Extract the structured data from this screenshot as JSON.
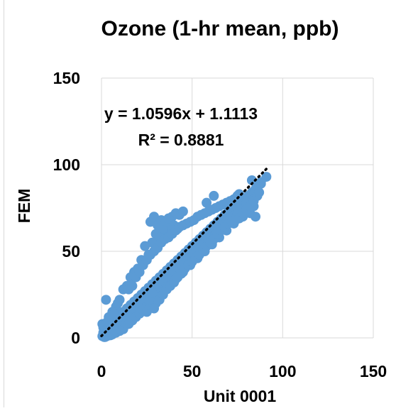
{
  "chart_data": {
    "type": "scatter",
    "title": "Ozone (1-hr mean, ppb)",
    "xlabel": "Unit 0001",
    "ylabel": "FEM",
    "xlim": [
      0,
      150
    ],
    "ylim": [
      0,
      150
    ],
    "xticks": [
      "0",
      "50",
      "100",
      "150"
    ],
    "yticks": [
      "0",
      "50",
      "100",
      "150"
    ],
    "grid": true,
    "legend": "none",
    "marker_color": "#5B9BD5",
    "trendline": {
      "style": "dotted",
      "color": "#000000",
      "slope": 1.0596,
      "intercept": 1.1113,
      "x_range": [
        0,
        91
      ]
    },
    "annotations": {
      "equation": "y = 1.0596x + 1.1113",
      "r_squared": "R² = 0.8881"
    },
    "series": [
      {
        "points": [
          [
            0.5,
            1
          ],
          [
            1,
            3
          ],
          [
            1.5,
            0.5
          ],
          [
            2,
            5
          ],
          [
            2.5,
            7
          ],
          [
            3,
            2
          ],
          [
            4,
            4
          ],
          [
            4.5,
            8
          ],
          [
            5,
            1.5
          ],
          [
            6,
            6
          ],
          [
            7,
            3
          ],
          [
            7.5,
            9
          ],
          [
            8,
            5
          ],
          [
            9,
            11
          ],
          [
            10,
            7
          ],
          [
            10.5,
            13
          ],
          [
            11,
            9
          ],
          [
            12,
            15
          ],
          [
            13,
            11
          ],
          [
            13.5,
            8
          ],
          [
            14,
            17
          ],
          [
            15,
            13
          ],
          [
            16,
            19
          ],
          [
            16.5,
            12
          ],
          [
            17,
            15
          ],
          [
            18,
            21
          ],
          [
            19,
            16
          ],
          [
            20,
            23
          ],
          [
            20.5,
            18
          ],
          [
            21,
            14
          ],
          [
            22,
            25
          ],
          [
            23,
            20
          ],
          [
            24,
            27
          ],
          [
            24.5,
            22
          ],
          [
            25,
            18
          ],
          [
            26,
            29
          ],
          [
            27,
            24
          ],
          [
            28,
            31
          ],
          [
            28.5,
            26
          ],
          [
            29,
            22
          ],
          [
            30,
            33
          ],
          [
            31,
            28
          ],
          [
            32,
            35
          ],
          [
            32.5,
            30
          ],
          [
            33,
            26
          ],
          [
            34,
            37
          ],
          [
            35,
            32
          ],
          [
            36,
            39
          ],
          [
            36.5,
            34
          ],
          [
            37,
            30
          ],
          [
            38,
            41
          ],
          [
            39,
            36
          ],
          [
            40,
            43
          ],
          [
            40.5,
            38
          ],
          [
            41,
            34
          ],
          [
            42,
            45
          ],
          [
            43,
            40
          ],
          [
            44,
            47
          ],
          [
            44.5,
            42
          ],
          [
            45,
            38
          ],
          [
            46,
            49
          ],
          [
            47,
            44
          ],
          [
            48,
            51
          ],
          [
            48.5,
            46
          ],
          [
            49,
            42
          ],
          [
            50,
            53
          ],
          [
            51,
            48
          ],
          [
            52,
            55
          ],
          [
            52.5,
            50
          ],
          [
            53,
            46
          ],
          [
            54,
            57
          ],
          [
            55,
            52
          ],
          [
            56,
            59
          ],
          [
            56.5,
            54
          ],
          [
            57,
            50
          ],
          [
            58,
            61
          ],
          [
            59,
            56
          ],
          [
            60,
            63
          ],
          [
            60.5,
            58
          ],
          [
            61,
            54
          ],
          [
            62,
            65
          ],
          [
            63,
            60
          ],
          [
            64,
            67
          ],
          [
            64.5,
            62
          ],
          [
            65,
            58
          ],
          [
            66,
            69
          ],
          [
            67,
            64
          ],
          [
            68,
            71
          ],
          [
            68.5,
            66
          ],
          [
            69,
            62
          ],
          [
            70,
            73
          ],
          [
            71,
            68
          ],
          [
            72,
            75
          ],
          [
            72.5,
            70
          ],
          [
            73,
            66
          ],
          [
            74,
            77
          ],
          [
            75,
            72
          ],
          [
            76,
            78
          ],
          [
            77,
            74
          ],
          [
            78,
            70
          ],
          [
            79,
            80
          ],
          [
            80,
            76
          ],
          [
            81,
            82
          ],
          [
            82,
            78
          ],
          [
            83,
            84
          ],
          [
            84,
            80
          ],
          [
            85,
            86
          ],
          [
            86,
            88
          ],
          [
            88,
            90
          ],
          [
            91,
            93
          ],
          [
            83,
            91
          ],
          [
            88,
            89
          ],
          [
            76,
            83
          ],
          [
            80,
            78
          ],
          [
            84,
            76
          ],
          [
            82,
            72
          ],
          [
            85,
            70
          ],
          [
            27,
            67
          ],
          [
            29,
            70
          ],
          [
            31,
            65
          ],
          [
            33,
            68
          ],
          [
            35,
            66
          ],
          [
            37,
            69
          ],
          [
            39,
            70
          ],
          [
            41,
            72
          ],
          [
            43,
            71
          ],
          [
            45,
            73
          ],
          [
            40,
            65
          ],
          [
            42,
            63
          ],
          [
            38,
            62
          ],
          [
            34,
            62
          ],
          [
            36,
            58
          ],
          [
            30,
            60
          ],
          [
            32,
            58
          ],
          [
            28,
            55
          ],
          [
            24,
            53
          ],
          [
            26,
            48
          ],
          [
            22,
            45
          ],
          [
            20,
            40
          ],
          [
            18,
            38
          ],
          [
            16,
            35
          ],
          [
            14,
            30
          ],
          [
            12,
            28
          ],
          [
            10,
            22
          ],
          [
            8,
            18
          ],
          [
            6,
            15
          ],
          [
            4,
            12
          ],
          [
            2.5,
            22
          ],
          [
            5,
            10
          ],
          [
            7,
            14
          ],
          [
            9,
            20
          ],
          [
            15,
            28
          ],
          [
            17,
            30
          ],
          [
            19,
            35
          ],
          [
            21,
            38
          ],
          [
            23,
            42
          ],
          [
            25,
            45
          ],
          [
            27,
            48
          ],
          [
            29,
            50
          ],
          [
            31,
            52
          ],
          [
            33,
            55
          ],
          [
            35,
            57
          ],
          [
            37,
            58
          ],
          [
            39,
            60
          ],
          [
            41,
            62
          ],
          [
            43,
            64
          ],
          [
            45,
            65
          ],
          [
            47,
            66
          ],
          [
            49,
            67
          ],
          [
            51,
            68
          ],
          [
            53,
            70
          ],
          [
            55,
            71
          ],
          [
            57,
            72
          ],
          [
            59,
            73
          ],
          [
            61,
            74
          ],
          [
            63,
            75
          ],
          [
            65,
            76
          ],
          [
            67,
            77
          ],
          [
            69,
            78
          ],
          [
            71,
            79
          ],
          [
            73,
            80
          ],
          [
            75,
            82
          ],
          [
            62,
            82
          ],
          [
            58,
            78
          ],
          [
            30,
            20
          ],
          [
            32,
            22
          ],
          [
            34,
            25
          ],
          [
            36,
            28
          ],
          [
            38,
            30
          ],
          [
            40,
            32
          ],
          [
            42,
            35
          ],
          [
            44,
            37
          ],
          [
            46,
            40
          ],
          [
            48,
            42
          ],
          [
            50,
            44
          ],
          [
            52,
            46
          ],
          [
            54,
            48
          ],
          [
            56,
            51
          ],
          [
            58,
            53
          ],
          [
            60,
            55
          ],
          [
            62,
            57
          ],
          [
            64,
            60
          ],
          [
            66,
            62
          ],
          [
            68,
            64
          ],
          [
            70,
            66
          ],
          [
            72,
            67
          ],
          [
            74,
            68
          ],
          [
            76,
            69
          ],
          [
            78,
            72
          ],
          [
            80,
            74
          ],
          [
            82,
            76
          ],
          [
            84,
            79
          ],
          [
            86,
            82
          ],
          [
            87,
            84
          ],
          [
            15,
            8
          ],
          [
            17,
            10
          ],
          [
            19,
            12
          ],
          [
            21,
            14
          ],
          [
            23,
            16
          ],
          [
            25,
            15
          ],
          [
            27,
            19
          ],
          [
            29,
            17
          ],
          [
            26,
            22
          ],
          [
            28,
            26
          ],
          [
            12,
            5
          ],
          [
            10,
            4
          ],
          [
            8,
            3
          ],
          [
            6,
            2
          ],
          [
            3,
            1
          ],
          [
            2,
            0.5
          ],
          [
            1,
            6
          ],
          [
            0.5,
            8
          ],
          [
            1.5,
            4
          ],
          [
            3,
            9
          ]
        ]
      }
    ]
  }
}
